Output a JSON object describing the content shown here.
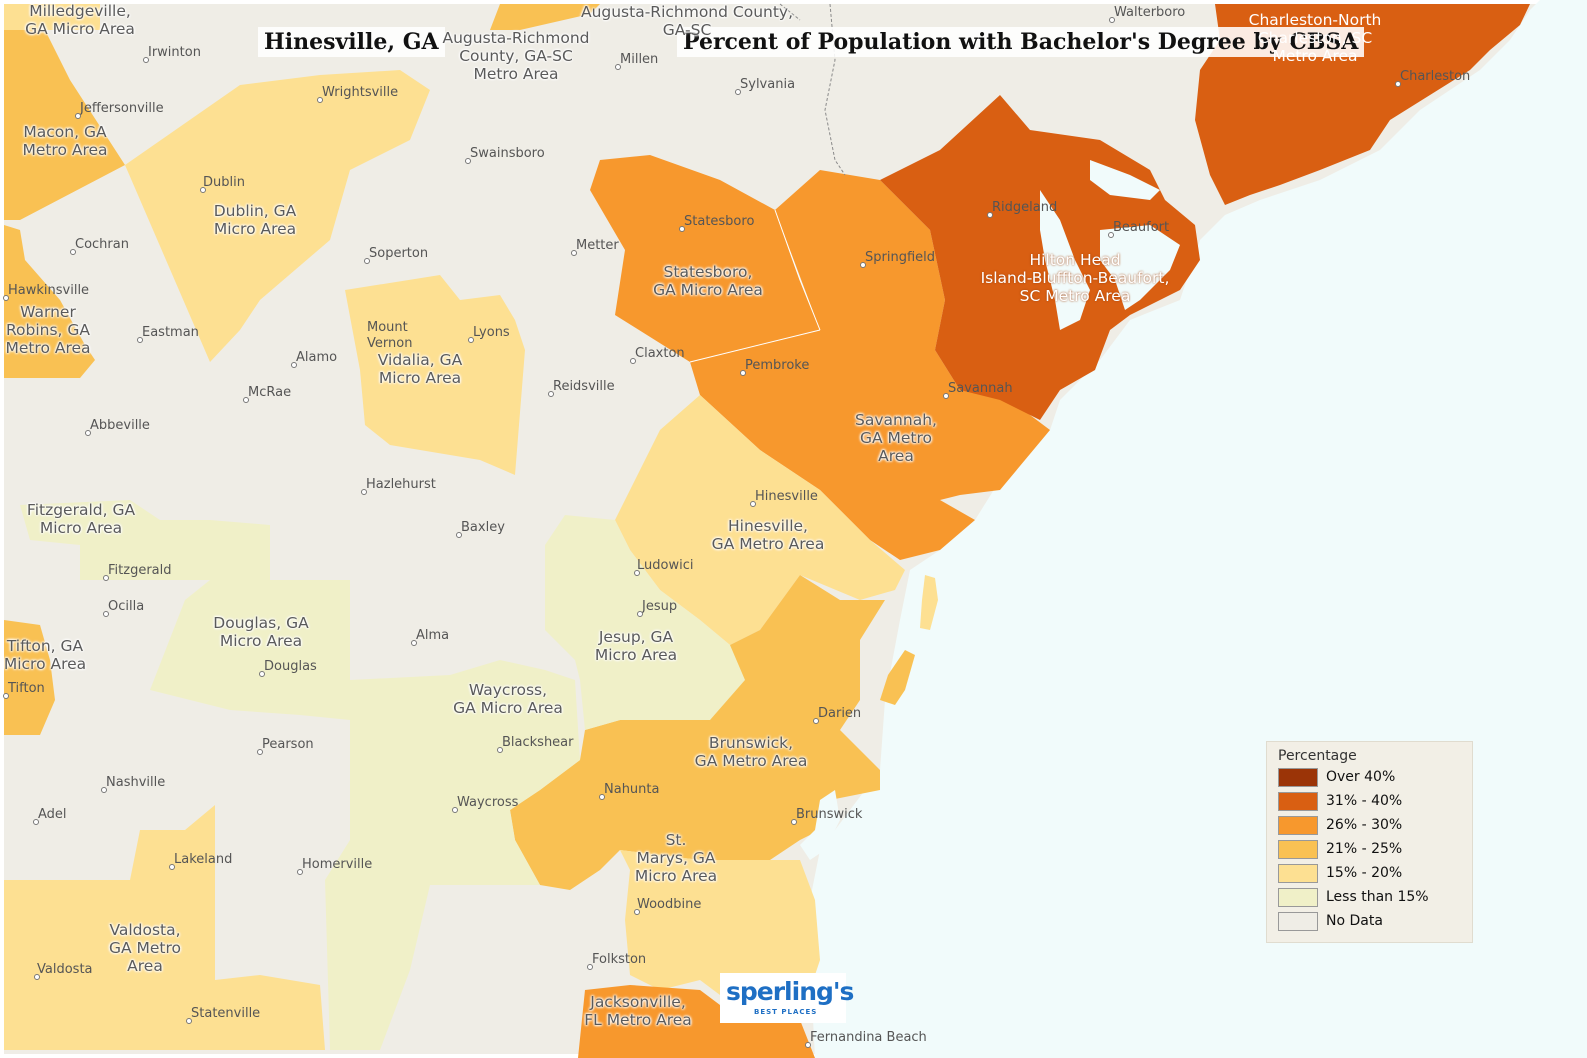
{
  "titles": {
    "location": "Hinesville, GA",
    "map_title": "Percent of Population with Bachelor's Degree by CBSA"
  },
  "colors": {
    "over_40": "#9b3407",
    "c31_40": "#d95f12",
    "c26_30": "#f7982d",
    "c21_25": "#f9c153",
    "c15_20": "#fde092",
    "lt15": "#f0f0c8",
    "no_data": "#efede6",
    "water": "#f1fbfb"
  },
  "areas": {
    "milledgeville": "Milledgeville,\nGA Micro Area",
    "augusta": "Augusta-Richmond\nCounty, GA-SC\nMetro Area",
    "augusta_top": "Augusta-Richmond County,\nGA-SC",
    "charleston": "Charleston-North\nCharleston, SC\nMetro Area",
    "macon": "Macon, GA\nMetro Area",
    "dublin": "Dublin, GA\nMicro Area",
    "statesboro": "Statesboro,\nGA Micro Area",
    "hilton_head": "Hilton Head\nIsland-Bluffton-Beaufort,\nSC Metro Area",
    "warner_robins": "Warner\nRobins, GA\nMetro Area",
    "vidalia": "Vidalia, GA\nMicro Area",
    "savannah": "Savannah,\nGA Metro\nArea",
    "hinesville": "Hinesville,\nGA Metro Area",
    "fitzgerald": "Fitzgerald, GA\nMicro Area",
    "douglas": "Douglas, GA\nMicro Area",
    "jesup": "Jesup, GA\nMicro Area",
    "tifton": "Tifton, GA\nMicro Area",
    "waycross": "Waycross,\nGA Micro Area",
    "brunswick": "Brunswick,\nGA Metro Area",
    "st_marys": "St.\nMarys, GA\nMicro Area",
    "valdosta": "Valdosta,\nGA Metro\nArea",
    "jacksonville": "Jacksonville,\nFL Metro Area"
  },
  "cities": {
    "irwinton": "Irwinton",
    "millen": "Millen",
    "walterboro": "Walterboro",
    "charleston": "Charleston",
    "jeffersonville": "Jeffersonville",
    "wrightsville": "Wrightsville",
    "sylvania": "Sylvania",
    "swainsboro": "Swainsboro",
    "dublin": "Dublin",
    "statesboro": "Statesboro",
    "ridgeland": "Ridgeland",
    "beaufort": "Beaufort",
    "cochran": "Cochran",
    "soperton": "Soperton",
    "metter": "Metter",
    "springfield": "Springfield",
    "hawkinsville": "Hawkinsville",
    "eastman": "Eastman",
    "mount_vernon": "Mount\nVernon",
    "lyons": "Lyons",
    "claxton": "Claxton",
    "alamo": "Alamo",
    "pembroke": "Pembroke",
    "mcrae": "McRae",
    "reidsville": "Reidsville",
    "savannah": "Savannah",
    "abbeville": "Abbeville",
    "hazlehurst": "Hazlehurst",
    "hinesville": "Hinesville",
    "baxley": "Baxley",
    "fitzgerald": "Fitzgerald",
    "ludowici": "Ludowici",
    "ocilla": "Ocilla",
    "jesup": "Jesup",
    "alma": "Alma",
    "douglas": "Douglas",
    "tifton": "Tifton",
    "darien": "Darien",
    "pearson": "Pearson",
    "blackshear": "Blackshear",
    "nashville": "Nashville",
    "nahunta": "Nahunta",
    "waycross": "Waycross",
    "adel": "Adel",
    "brunswick": "Brunswick",
    "lakeland": "Lakeland",
    "homerville": "Homerville",
    "woodbine": "Woodbine",
    "valdosta": "Valdosta",
    "folkston": "Folkston",
    "statenville": "Statenville",
    "fernandina_beach": "Fernandina Beach"
  },
  "legend": {
    "title": "Percentage",
    "items": [
      {
        "label": "Over 40%",
        "color": "#9b3407"
      },
      {
        "label": "31% - 40%",
        "color": "#d95f12"
      },
      {
        "label": "26% - 30%",
        "color": "#f7982d"
      },
      {
        "label": "21% - 25%",
        "color": "#f9c153"
      },
      {
        "label": "15% - 20%",
        "color": "#fde092"
      },
      {
        "label": "Less than 15%",
        "color": "#f0f0c8"
      },
      {
        "label": "No Data",
        "color": "#efede6"
      }
    ]
  },
  "logo": {
    "brand": "sperling's",
    "sub": "BEST PLACES"
  }
}
